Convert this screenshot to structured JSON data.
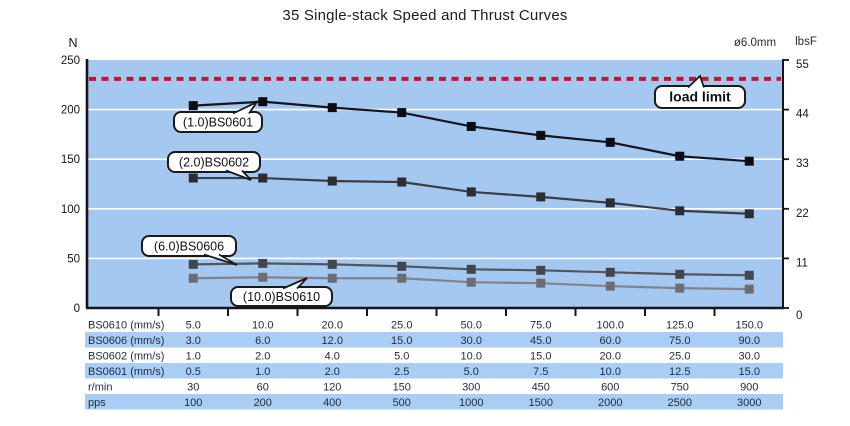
{
  "title": "35 Single-stack Speed and Thrust Curves",
  "chart_data": {
    "type": "line",
    "title": "35 Single-stack Speed and Thrust Curves",
    "size_note": "ø6.0mm",
    "x_axis": {
      "label_row": "BS0610 (mm/s)",
      "categories": [
        "5.0",
        "10.0",
        "20.0",
        "25.0",
        "50.0",
        "75.0",
        "100.0",
        "125.0",
        "150.0"
      ]
    },
    "y_axis_left": {
      "label": "N",
      "ticks": [
        "250",
        "200",
        "150",
        "100",
        "50",
        "0"
      ],
      "tick_values": [
        250,
        200,
        150,
        100,
        50,
        0
      ],
      "range": [
        0,
        250
      ],
      "gridlines_at": [
        200,
        150,
        100,
        50
      ]
    },
    "y_axis_right": {
      "label": "lbsF",
      "ticks": [
        "55",
        "44",
        "33",
        "22",
        "11",
        "0"
      ],
      "tick_values_N": [
        250,
        200,
        150,
        100,
        50,
        0
      ]
    },
    "load_limit": {
      "label": "load limit",
      "value_N": 231,
      "color": "#c81232"
    },
    "series": [
      {
        "name": "BS0601",
        "callout": "(1.0)BS0601",
        "line_color": "#15151d",
        "marker_color": "#0c0c14",
        "values_N": [
          204,
          208,
          202,
          197,
          183,
          174,
          167,
          153,
          148
        ]
      },
      {
        "name": "BS0602",
        "callout": "(2.0)BS0602",
        "line_color": "#3d3d46",
        "marker_color": "#2c2c34",
        "values_N": [
          131,
          131,
          128,
          127,
          117,
          112,
          106,
          98,
          95
        ]
      },
      {
        "name": "BS0606",
        "callout": "(6.0)BS0606",
        "line_color": "#55555d",
        "marker_color": "#45454d",
        "values_N": [
          44,
          45,
          44,
          42,
          39,
          38,
          36,
          34,
          33
        ]
      },
      {
        "name": "BS0610",
        "callout": "(10.0)BS0610",
        "line_color": "#82828c",
        "marker_color": "#6c6c75",
        "values_N": [
          30,
          31,
          30,
          30,
          26,
          25,
          22,
          20,
          19
        ]
      }
    ],
    "table": {
      "rows": [
        {
          "label": "BS0610 (mm/s)",
          "highlight": false,
          "values": [
            "5.0",
            "10.0",
            "20.0",
            "25.0",
            "50.0",
            "75.0",
            "100.0",
            "125.0",
            "150.0"
          ]
        },
        {
          "label": "BS0606 (mm/s)",
          "highlight": true,
          "values": [
            "3.0",
            "6.0",
            "12.0",
            "15.0",
            "30.0",
            "45.0",
            "60.0",
            "75.0",
            "90.0"
          ]
        },
        {
          "label": "BS0602 (mm/s)",
          "highlight": false,
          "values": [
            "1.0",
            "2.0",
            "4.0",
            "5.0",
            "10.0",
            "15.0",
            "20.0",
            "25.0",
            "30.0"
          ]
        },
        {
          "label": "BS0601 (mm/s)",
          "highlight": true,
          "values": [
            "0.5",
            "1.0",
            "2.0",
            "2.5",
            "5.0",
            "7.5",
            "10.0",
            "12.5",
            "15.0"
          ]
        },
        {
          "label": "r/min",
          "highlight": false,
          "values": [
            "30",
            "60",
            "120",
            "150",
            "300",
            "450",
            "600",
            "750",
            "900"
          ]
        },
        {
          "label": "pps",
          "highlight": true,
          "values": [
            "100",
            "200",
            "400",
            "500",
            "1000",
            "1500",
            "2000",
            "2500",
            "3000"
          ]
        }
      ]
    },
    "colors": {
      "plot_bg": "#a5c8f0",
      "table_highlight": "#a9cdf4",
      "gridline": "#ffffff",
      "axis": "#14141a",
      "text": "#1d2b3e",
      "callout_bg": "#ffffff",
      "callout_border": "#1a1a1a"
    }
  }
}
